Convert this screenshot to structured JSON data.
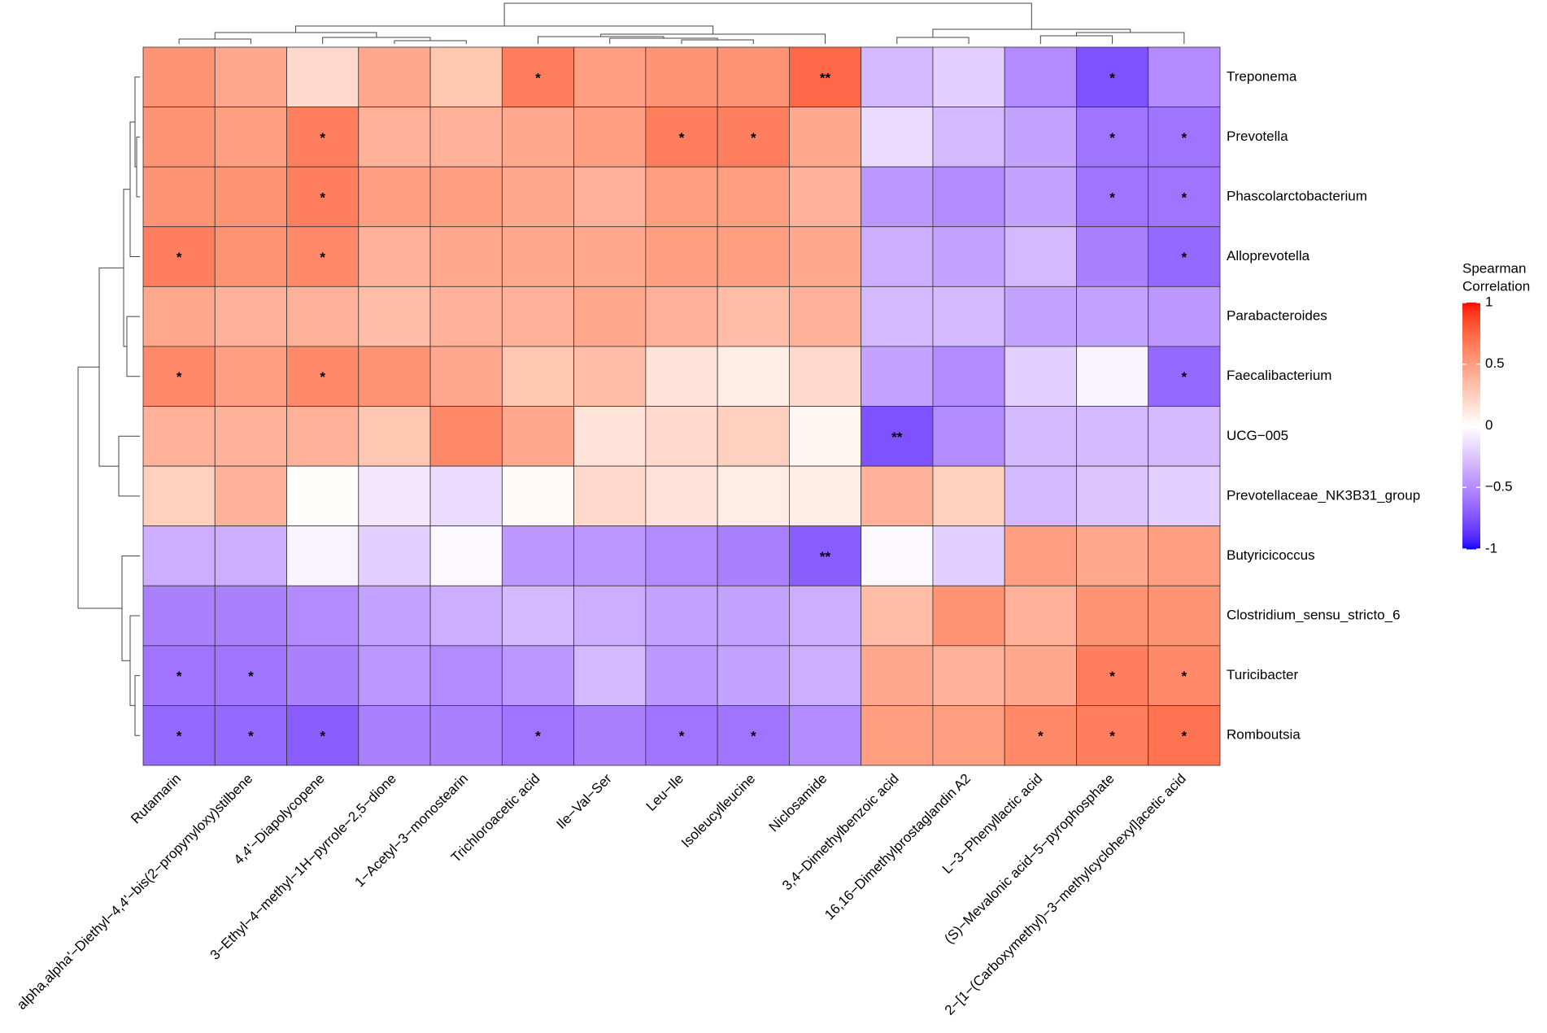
{
  "chart_data": {
    "type": "heatmap",
    "x": [
      "Rutamarin",
      "alpha,alpha'−Diethyl−4,4'−bis(2−propynyloxy)stilbene",
      "4,4'−Diapolycopene",
      "3−Ethyl−4−methyl−1H−pyrrole−2,5−dione",
      "1−Acetyl−3−monostearin",
      "Trichloroacetic acid",
      "Ile−Val−Ser",
      "Leu−Ile",
      "Isoleucylleucine",
      "Niclosamide",
      "3,4−Dimethylbenzoic acid",
      "16,16−Dimethylprostaglandin A2",
      "L−3−Phenyllactic acid",
      "(S)−Mevalonic acid−5−pyrophosphate",
      "2−[1−(Carboxymethyl)−3−methylcyclohexyl]acetic acid"
    ],
    "y": [
      "Treponema",
      "Prevotella",
      "Phascolarctobacterium",
      "Alloprevotella",
      "Parabacteroides",
      "Faecalibacterium",
      "UCG−005",
      "Prevotellaceae_NK3B31_group",
      "Butyricicoccus",
      "Clostridium_sensu_stricto_6",
      "Turicibacter",
      "Romboutsia"
    ],
    "values": [
      [
        0.55,
        0.45,
        0.2,
        0.45,
        0.3,
        0.65,
        0.5,
        0.55,
        0.55,
        0.75,
        -0.3,
        -0.2,
        -0.5,
        -0.75,
        -0.5
      ],
      [
        0.55,
        0.5,
        0.65,
        0.4,
        0.4,
        0.45,
        0.5,
        0.65,
        0.65,
        0.45,
        -0.15,
        -0.3,
        -0.4,
        -0.6,
        -0.6
      ],
      [
        0.55,
        0.55,
        0.65,
        0.5,
        0.5,
        0.45,
        0.4,
        0.5,
        0.5,
        0.4,
        -0.45,
        -0.5,
        -0.4,
        -0.6,
        -0.6
      ],
      [
        0.65,
        0.55,
        0.6,
        0.4,
        0.45,
        0.45,
        0.45,
        0.5,
        0.5,
        0.45,
        -0.35,
        -0.4,
        -0.3,
        -0.55,
        -0.65
      ],
      [
        0.45,
        0.4,
        0.4,
        0.35,
        0.4,
        0.4,
        0.45,
        0.4,
        0.35,
        0.4,
        -0.3,
        -0.3,
        -0.4,
        -0.4,
        -0.45
      ],
      [
        0.6,
        0.5,
        0.6,
        0.55,
        0.45,
        0.3,
        0.35,
        0.15,
        0.1,
        0.2,
        -0.4,
        -0.5,
        -0.2,
        -0.05,
        -0.65
      ],
      [
        0.4,
        0.4,
        0.4,
        0.3,
        0.6,
        0.45,
        0.15,
        0.2,
        0.25,
        0.05,
        -0.75,
        -0.5,
        -0.3,
        -0.3,
        -0.3
      ],
      [
        0.25,
        0.4,
        0.01,
        -0.1,
        -0.15,
        0.03,
        0.2,
        0.15,
        0.1,
        0.1,
        0.4,
        0.25,
        -0.3,
        -0.25,
        -0.2
      ],
      [
        -0.35,
        -0.35,
        -0.05,
        -0.2,
        -0.03,
        -0.45,
        -0.45,
        -0.5,
        -0.55,
        -0.7,
        -0.03,
        -0.2,
        0.5,
        0.45,
        0.5
      ],
      [
        -0.55,
        -0.55,
        -0.5,
        -0.4,
        -0.35,
        -0.3,
        -0.35,
        -0.4,
        -0.4,
        -0.35,
        0.35,
        0.55,
        0.4,
        0.55,
        0.55
      ],
      [
        -0.6,
        -0.6,
        -0.55,
        -0.45,
        -0.5,
        -0.45,
        -0.3,
        -0.45,
        -0.4,
        -0.35,
        0.45,
        0.4,
        0.45,
        0.65,
        0.6
      ],
      [
        -0.65,
        -0.65,
        -0.7,
        -0.55,
        -0.55,
        -0.6,
        -0.55,
        -0.6,
        -0.6,
        -0.5,
        0.5,
        0.5,
        0.6,
        0.65,
        0.7
      ]
    ],
    "annotations": [
      [
        null,
        null,
        null,
        null,
        null,
        "*",
        null,
        null,
        null,
        "**",
        null,
        null,
        null,
        "*",
        null
      ],
      [
        null,
        null,
        "*",
        null,
        null,
        null,
        null,
        "*",
        "*",
        null,
        null,
        null,
        null,
        "*",
        "*"
      ],
      [
        null,
        null,
        "*",
        null,
        null,
        null,
        null,
        null,
        null,
        null,
        null,
        null,
        null,
        "*",
        "*"
      ],
      [
        "*",
        null,
        "*",
        null,
        null,
        null,
        null,
        null,
        null,
        null,
        null,
        null,
        null,
        null,
        "*"
      ],
      [
        null,
        null,
        null,
        null,
        null,
        null,
        null,
        null,
        null,
        null,
        null,
        null,
        null,
        null,
        null
      ],
      [
        "*",
        null,
        "*",
        null,
        null,
        null,
        null,
        null,
        null,
        null,
        null,
        null,
        null,
        null,
        "*"
      ],
      [
        null,
        null,
        null,
        null,
        null,
        null,
        null,
        null,
        null,
        null,
        "**",
        null,
        null,
        null,
        null
      ],
      [
        null,
        null,
        null,
        null,
        null,
        null,
        null,
        null,
        null,
        null,
        null,
        null,
        null,
        null,
        null
      ],
      [
        null,
        null,
        null,
        null,
        null,
        null,
        null,
        null,
        null,
        "**",
        null,
        null,
        null,
        null,
        null
      ],
      [
        null,
        null,
        null,
        null,
        null,
        null,
        null,
        null,
        null,
        null,
        null,
        null,
        null,
        null,
        null
      ],
      [
        "*",
        "*",
        null,
        null,
        null,
        null,
        null,
        null,
        null,
        null,
        null,
        null,
        null,
        "*",
        "*"
      ],
      [
        "*",
        "*",
        "*",
        null,
        null,
        "*",
        null,
        "*",
        "*",
        null,
        null,
        null,
        "*",
        "*",
        "*"
      ]
    ],
    "colorscale": [
      "#0000ff",
      "#ffffff",
      "#ff0000"
    ],
    "zlim": [
      -1,
      1
    ],
    "zticks": [
      -1,
      {
        "value": -0.5,
        "label": "−0.5"
      },
      0,
      0.5,
      1
    ],
    "legend_title": [
      "Spearman",
      "Correlation"
    ]
  }
}
